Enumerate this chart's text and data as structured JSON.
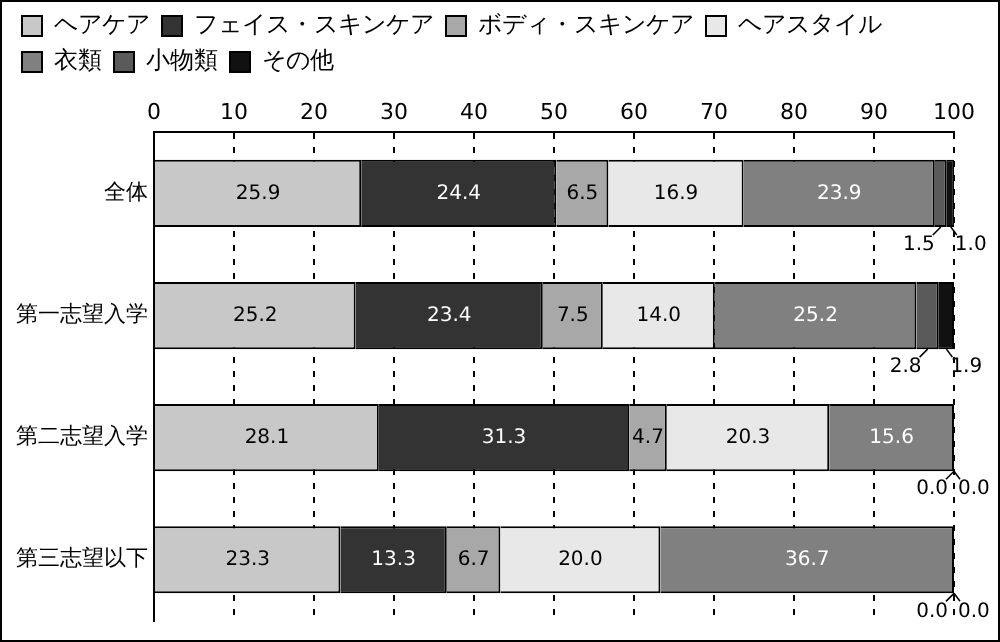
{
  "chart_data": {
    "type": "bar",
    "orientation": "horizontal",
    "stacked": true,
    "categories": [
      "全体",
      "第一志望入学",
      "第二志望入学",
      "第三志望以下"
    ],
    "series": [
      {
        "name": "ヘアケア",
        "color": "#c8c8c8",
        "values": [
          25.9,
          25.2,
          28.1,
          23.3
        ],
        "value_labels": [
          "25.9",
          "25.2",
          "28.1",
          "23.3"
        ]
      },
      {
        "name": "フェイス・スキンケア",
        "color": "#333333",
        "values": [
          24.4,
          23.4,
          31.3,
          13.3
        ],
        "value_labels": [
          "24.4",
          "23.4",
          "31.3",
          "13.3"
        ]
      },
      {
        "name": "ボディ・スキンケア",
        "color": "#a8a8a8",
        "values": [
          6.5,
          7.5,
          4.7,
          6.7
        ],
        "value_labels": [
          "6.5",
          "7.5",
          "4.7",
          "6.7"
        ]
      },
      {
        "name": "ヘアスタイル",
        "color": "#e8e8e8",
        "values": [
          16.9,
          14.0,
          20.3,
          20.0
        ],
        "value_labels": [
          "16.9",
          "14.0",
          "20.3",
          "20.0"
        ]
      },
      {
        "name": "衣類",
        "color": "#808080",
        "values": [
          23.9,
          25.2,
          15.6,
          36.7
        ],
        "value_labels": [
          "23.9",
          "25.2",
          "15.6",
          "36.7"
        ]
      },
      {
        "name": "小物類",
        "color": "#5a5a5a",
        "values": [
          1.5,
          2.8,
          0.0,
          0.0
        ],
        "value_labels": [
          "1.5",
          "2.8",
          "0.0",
          "0.0"
        ]
      },
      {
        "name": "その他",
        "color": "#111111",
        "values": [
          1.0,
          1.9,
          0.0,
          0.0
        ],
        "value_labels": [
          "1.0",
          "1.9",
          "0.0",
          "0.0"
        ]
      }
    ],
    "xlim": [
      0,
      100
    ],
    "xticks": [
      0,
      10,
      20,
      30,
      40,
      50,
      60,
      70,
      80,
      90,
      100
    ],
    "grid": "x",
    "legend": "top"
  }
}
